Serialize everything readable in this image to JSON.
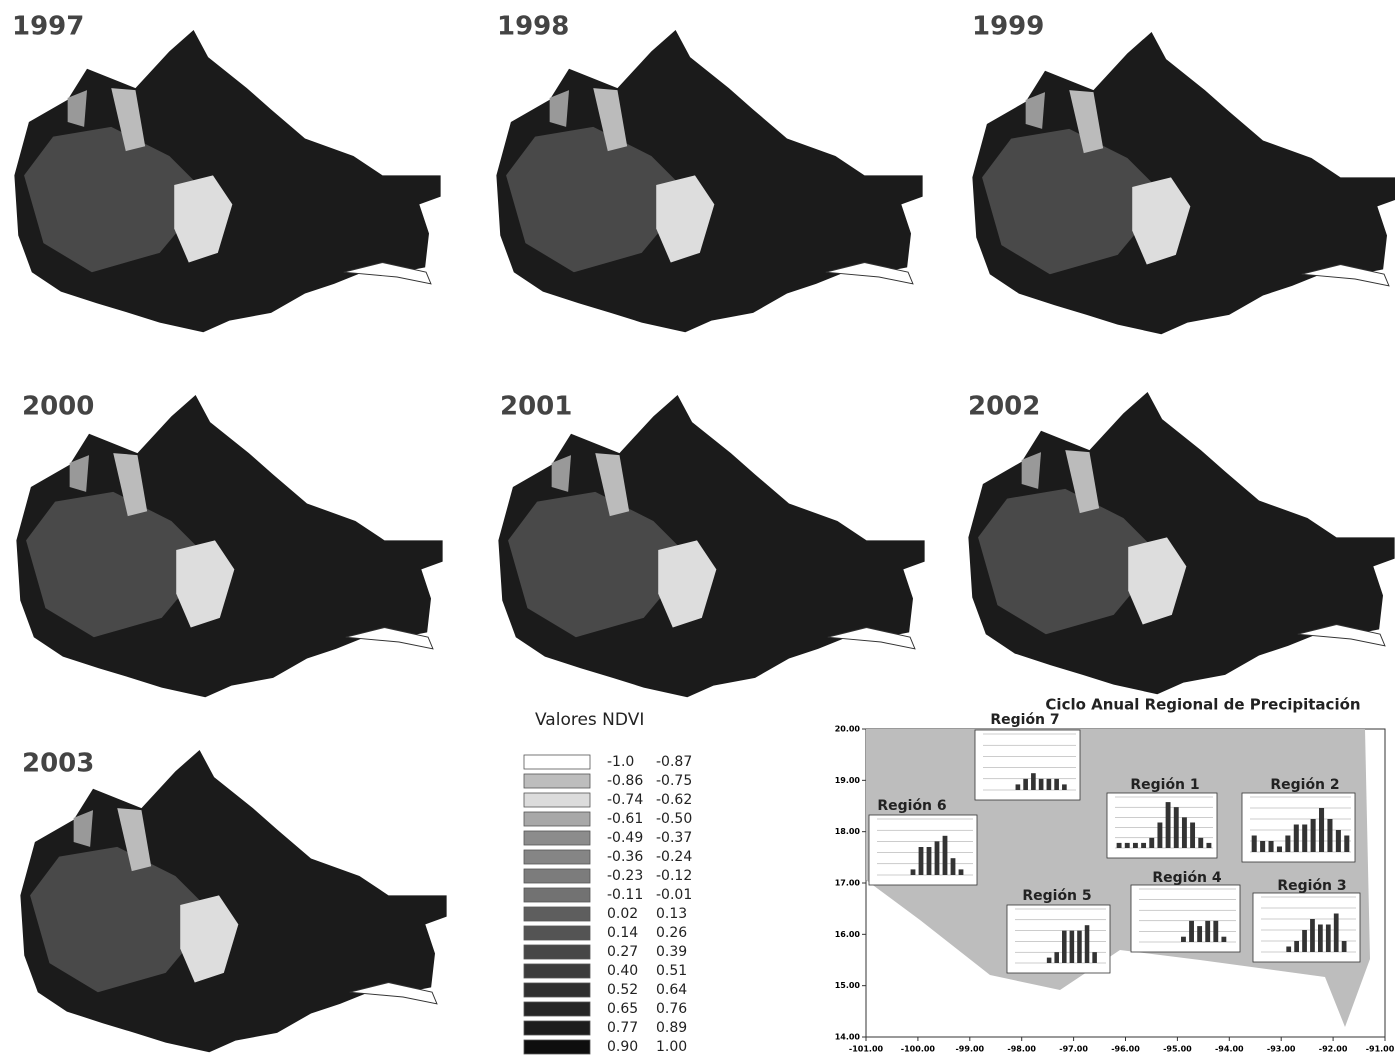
{
  "maps": [
    {
      "year": "1997"
    },
    {
      "year": "1998"
    },
    {
      "year": "1999"
    },
    {
      "year": "2000"
    },
    {
      "year": "2001"
    },
    {
      "year": "2002"
    },
    {
      "year": "2003"
    }
  ],
  "legend": {
    "title": "Valores NDVI",
    "items": [
      {
        "from": "-1.0",
        "to": "-0.87",
        "color": "#ffffff"
      },
      {
        "from": "-0.86",
        "to": "-0.75",
        "color": "#bdbdbd"
      },
      {
        "from": "-0.74",
        "to": "-0.62",
        "color": "#dcdcdc"
      },
      {
        "from": "-0.61",
        "to": "-0.50",
        "color": "#a8a8a8"
      },
      {
        "from": "-0.49",
        "to": "-0.37",
        "color": "#8c8c8c"
      },
      {
        "from": "-0.36",
        "to": "-0.24",
        "color": "#858585"
      },
      {
        "from": "-0.23",
        "to": "-0.12",
        "color": "#7c7c7c"
      },
      {
        "from": "-0.11",
        "to": "-0.01",
        "color": "#727272"
      },
      {
        "from": "0.02",
        "to": "0.13",
        "color": "#5e5e5e"
      },
      {
        "from": "0.14",
        "to": "0.26",
        "color": "#545454"
      },
      {
        "from": "0.27",
        "to": "0.39",
        "color": "#474747"
      },
      {
        "from": "0.40",
        "to": "0.51",
        "color": "#3c3c3c"
      },
      {
        "from": "0.52",
        "to": "0.64",
        "color": "#303030"
      },
      {
        "from": "0.65",
        "to": "0.76",
        "color": "#262626"
      },
      {
        "from": "0.77",
        "to": "0.89",
        "color": "#1c1c1c"
      },
      {
        "from": "0.90",
        "to": "1.00",
        "color": "#0e0e0e"
      }
    ]
  },
  "chart_data": {
    "type": "bar",
    "title": "Ciclo Anual Regional de Precipitación",
    "xlim": [
      -101,
      -91
    ],
    "ylim": [
      14,
      20
    ],
    "xticks": [
      {
        "value": -101,
        "label": "-101.00"
      },
      {
        "value": -100,
        "label": "-100.00"
      },
      {
        "value": -99,
        "label": "-99.00"
      },
      {
        "value": -98,
        "label": "-98.00"
      },
      {
        "value": -97,
        "label": "-97.00"
      },
      {
        "value": -96,
        "label": "-96.00"
      },
      {
        "value": -95,
        "label": "-95.00"
      },
      {
        "value": -94,
        "label": "-94.00"
      },
      {
        "value": -93,
        "label": "-93.00"
      },
      {
        "value": -92,
        "label": "-92.00"
      },
      {
        "value": -91,
        "label": "-91.00"
      }
    ],
    "yticks": [
      {
        "value": 14,
        "label": "14.00"
      },
      {
        "value": 15,
        "label": "15.00"
      },
      {
        "value": 16,
        "label": "16.00"
      },
      {
        "value": 17,
        "label": "17.00"
      },
      {
        "value": 18,
        "label": "18.00"
      },
      {
        "value": 19,
        "label": "19.00"
      },
      {
        "value": 20,
        "label": "20.00"
      }
    ],
    "region_ylim": [
      0,
      10
    ],
    "color": "#333333",
    "regions": [
      {
        "name": "Región 7",
        "values": [
          0,
          0,
          0,
          0,
          1,
          2,
          3,
          2,
          2,
          2,
          1,
          0
        ]
      },
      {
        "name": "Región 1",
        "values": [
          1,
          1,
          1,
          1,
          2,
          5,
          9,
          8,
          6,
          5,
          2,
          1
        ]
      },
      {
        "name": "Región 2",
        "values": [
          3,
          2,
          2,
          1,
          3,
          5,
          5,
          6,
          8,
          6,
          4,
          3
        ]
      },
      {
        "name": "Región 6",
        "values": [
          0,
          0,
          0,
          0,
          1,
          5,
          5,
          6,
          7,
          3,
          1,
          0
        ]
      },
      {
        "name": "Región 4",
        "values": [
          0,
          0,
          0,
          0,
          0,
          1,
          4,
          3,
          4,
          4,
          1,
          0
        ]
      },
      {
        "name": "Región 3",
        "values": [
          0,
          0,
          0,
          1,
          2,
          4,
          6,
          5,
          5,
          7,
          2,
          0
        ]
      },
      {
        "name": "Región 5",
        "values": [
          0,
          0,
          0,
          0,
          1,
          2,
          6,
          6,
          6,
          7,
          2,
          0
        ]
      }
    ]
  }
}
